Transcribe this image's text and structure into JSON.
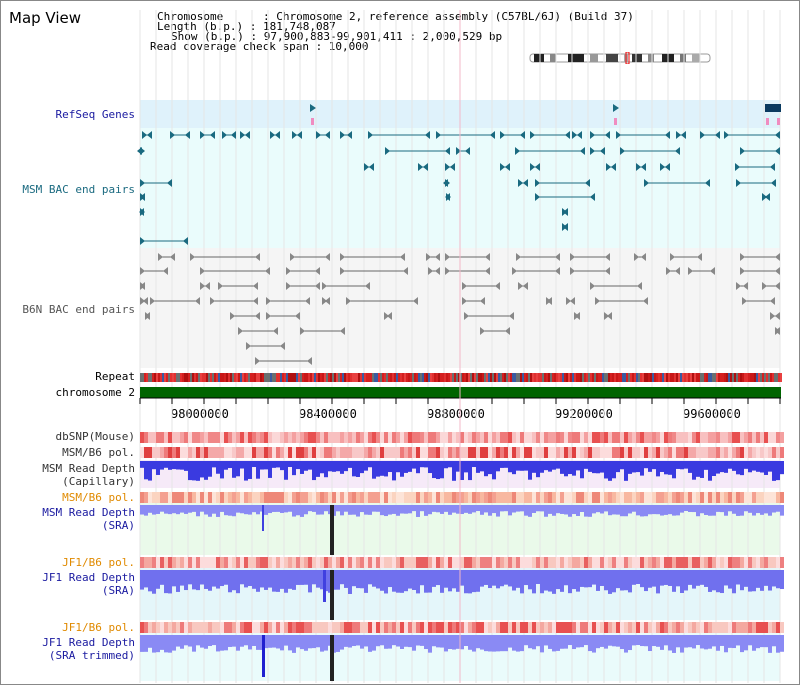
{
  "header": {
    "title": "Map View",
    "chromosome_line": "Chromosome      : Chromosome 2, reference assembly (C57BL/6J) (Build 37)",
    "length_line": "Length (b.p.) : 181,748,087",
    "show_line": "Show (b.p.) : 97,900,883-99,901,411 : 2,000,529 bp",
    "coverage_line": "Read coverage check span : 10,000"
  },
  "tracks": {
    "refseq": "RefSeq Genes",
    "msm_bac": "MSM BAC end pairs",
    "b6n_bac": "B6N BAC end pairs",
    "repeat": "Repeat",
    "chromosome": "chromosome 2",
    "dbsnp": "dbSNP(Mouse)",
    "msm_b6_pol_1": "MSM/B6 pol.",
    "msm_read_depth_cap_1": "MSM Read Depth",
    "msm_read_depth_cap_2": "(Capillary)",
    "msm_b6_pol_2": "MSM/B6 pol.",
    "msm_read_depth_sra_1": "MSM Read Depth",
    "msm_read_depth_sra_2": "(SRA)",
    "jf1_b6_pol_1": "JF1/B6 pol.",
    "jf1_read_depth_sra_1": "JF1 Read Depth",
    "jf1_read_depth_sra_2": "(SRA)",
    "jf1_b6_pol_2": "JF1/B6 pol.",
    "jf1_trim_1": "JF1 Read Depth",
    "jf1_trim_2": "(SRA trimmed)"
  },
  "ruler": {
    "ticks": [
      "98000000",
      "98400000",
      "98800000",
      "99200000",
      "99600000"
    ]
  },
  "colors": {
    "refseq": "#1a6a80",
    "msm_label": "#1a6a80",
    "b6n_label": "#666666",
    "blue_label": "#1a1aa0",
    "orange_label": "#e08a00",
    "chromosome_bar": "#006400",
    "depth_blue": "#6a6af0",
    "depth_dark": "#2323d0"
  }
}
